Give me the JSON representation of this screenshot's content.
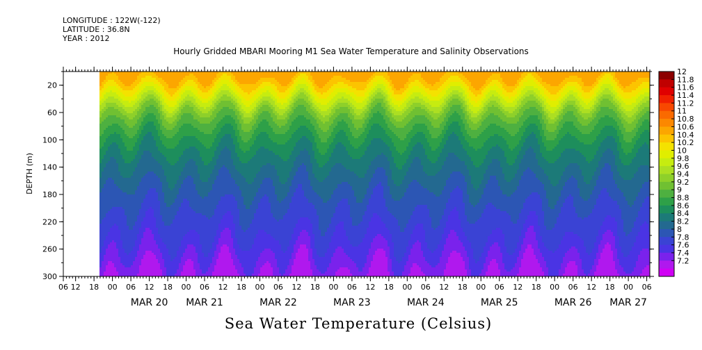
{
  "header": {
    "longitude": "LONGITUDE : 122W(-122)",
    "latitude": "LATITUDE : 36.8N",
    "year": "YEAR : 2012"
  },
  "chart_data": {
    "type": "heatmap",
    "title": "Hourly Gridded MBARI Mooring M1 Sea Water Temperature and Salinity Observations",
    "variable_title": "Sea Water Temperature (Celsius)",
    "ylabel": "DEPTH (m)",
    "y_reversed": true,
    "ylim": [
      0,
      300
    ],
    "y_ticks": [
      20,
      60,
      100,
      140,
      180,
      220,
      260,
      300
    ],
    "x_start": "2012-03-19 08:00",
    "x_end": "2012-03-27 07:00",
    "data_start": "2012-03-19 20:00",
    "x_hour_ticks": [
      "06",
      "12",
      "18",
      "00",
      "06",
      "12",
      "18",
      "00",
      "06",
      "12",
      "18",
      "00",
      "06",
      "12",
      "18",
      "00",
      "06",
      "12",
      "18",
      "00",
      "06",
      "12",
      "18",
      "00",
      "06",
      "12",
      "18",
      "00",
      "06",
      "12",
      "18",
      "00",
      "06"
    ],
    "x_date_labels": [
      {
        "label": "MAR 20",
        "hour": 12
      },
      {
        "label": "MAR 21",
        "hour": 6
      },
      {
        "label": "MAR 22",
        "hour": 6
      },
      {
        "label": "MAR 23",
        "hour": 6
      },
      {
        "label": "MAR 24",
        "hour": 6
      },
      {
        "label": "MAR 25",
        "hour": 6
      },
      {
        "label": "MAR 26",
        "hour": 6
      },
      {
        "label": "MAR 27",
        "hour": 0
      }
    ],
    "colorbar_levels": [
      "12",
      "11.8",
      "11.6",
      "11.4",
      "11.2",
      "11",
      "10.8",
      "10.6",
      "10.4",
      "10.2",
      "10",
      "9.8",
      "9.6",
      "9.4",
      "9.2",
      "9",
      "8.8",
      "8.6",
      "8.4",
      "8.2",
      "8",
      "7.8",
      "7.6",
      "7.4",
      "7.2"
    ],
    "colorbar_colors": [
      "#8c0000",
      "#c00000",
      "#e00000",
      "#f02000",
      "#f84800",
      "#fa6a00",
      "#fc8800",
      "#fca600",
      "#fcc400",
      "#f4e200",
      "#e0ee00",
      "#c6ec10",
      "#acdf22",
      "#8ed02a",
      "#70c032",
      "#4eb040",
      "#2ea048",
      "#1d8e5c",
      "#1c7a78",
      "#236990",
      "#2c56b4",
      "#3a43d4",
      "#4a34e4",
      "#7a22ec",
      "#b018ee",
      "#d000f4"
    ],
    "surface_bands": [
      {
        "depth": 0,
        "temp": 10.7
      },
      {
        "depth": 10,
        "temp": 10.6
      },
      {
        "depth": 20,
        "temp": 10.35
      },
      {
        "depth": 30,
        "temp": 10.1
      },
      {
        "depth": 45,
        "temp": 9.7
      },
      {
        "depth": 60,
        "temp": 9.3
      },
      {
        "depth": 80,
        "temp": 9.0
      },
      {
        "depth": 100,
        "temp": 8.75
      },
      {
        "depth": 120,
        "temp": 8.55
      },
      {
        "depth": 140,
        "temp": 8.4
      },
      {
        "depth": 160,
        "temp": 8.25
      },
      {
        "depth": 180,
        "temp": 8.1
      },
      {
        "depth": 200,
        "temp": 8.0
      },
      {
        "depth": 220,
        "temp": 7.9
      },
      {
        "depth": 240,
        "temp": 7.8
      },
      {
        "depth": 260,
        "temp": 7.65
      },
      {
        "depth": 280,
        "temp": 7.5
      },
      {
        "depth": 300,
        "temp": 7.35
      }
    ]
  }
}
